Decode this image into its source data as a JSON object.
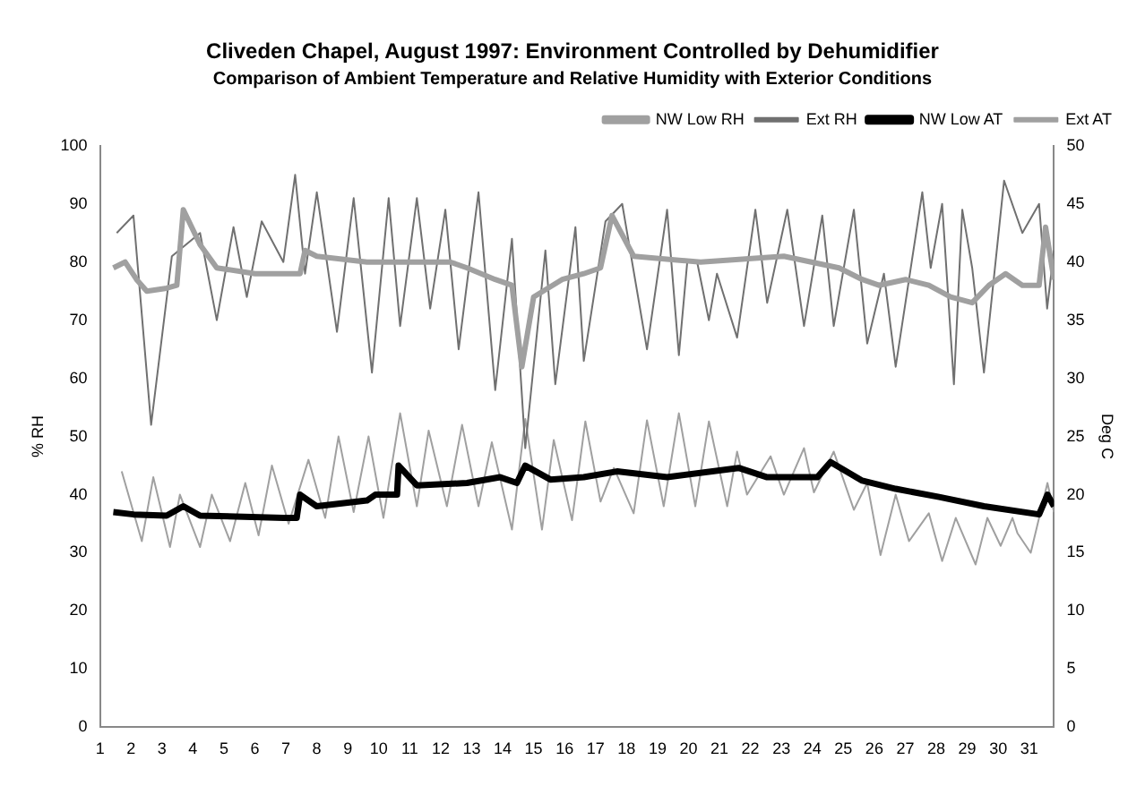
{
  "chart_data": {
    "type": "line",
    "title": "Cliveden Chapel, August 1997: Environment Controlled by Dehumidifier",
    "subtitle": "Comparison of Ambient Temperature and Relative Humidity with Exterior Conditions",
    "ylabel": "% RH",
    "y2label": "Deg C",
    "xlim": [
      1,
      31.8
    ],
    "xticks": [
      1,
      2,
      3,
      4,
      5,
      6,
      7,
      8,
      9,
      10,
      11,
      12,
      13,
      14,
      15,
      16,
      17,
      18,
      19,
      20,
      21,
      22,
      23,
      24,
      25,
      26,
      27,
      28,
      29,
      30,
      31
    ],
    "ylim": [
      0,
      100
    ],
    "yticks": [
      0,
      10,
      20,
      30,
      40,
      50,
      60,
      70,
      80,
      90,
      100
    ],
    "y2lim": [
      0,
      50
    ],
    "y2ticks": [
      0,
      5,
      10,
      15,
      20,
      25,
      30,
      35,
      40,
      45,
      50
    ],
    "grid": false,
    "legend": "top right",
    "marker": "none",
    "series": [
      {
        "name": "NW Low RH",
        "color": "#a0a0a0",
        "x": [
          1.43,
          1.81,
          2.18,
          2.51,
          3.15,
          3.48,
          3.69,
          4.23,
          4.77,
          6.01,
          7.46,
          7.62,
          8.0,
          9.62,
          12.31,
          12.85,
          13.76,
          14.3,
          14.62,
          15.0,
          15.92,
          16.62,
          17.16,
          17.53,
          18.23,
          20.39,
          23.08,
          24.86,
          25.61,
          26.15,
          27.01,
          27.76,
          28.46,
          29.16,
          29.7,
          30.24,
          30.78,
          31.32,
          31.53,
          31.8
        ],
        "values": [
          79,
          80,
          77,
          75,
          75.5,
          76,
          89,
          83,
          79,
          78,
          78,
          82,
          81,
          80,
          80,
          79,
          77,
          76,
          62,
          74,
          77,
          78,
          79,
          88,
          81,
          80,
          81,
          79,
          77,
          76,
          77,
          76,
          74,
          73,
          76,
          78,
          76,
          76,
          86,
          77
        ]
      },
      {
        "name": "Ext RH",
        "color": "#707070",
        "x": [
          1.54,
          2.08,
          2.65,
          3.32,
          4.23,
          4.77,
          5.31,
          5.74,
          6.22,
          6.92,
          7.3,
          7.62,
          8.0,
          8.65,
          9.19,
          9.78,
          10.32,
          10.69,
          11.23,
          11.66,
          12.15,
          12.58,
          13.22,
          13.76,
          14.3,
          14.73,
          15.38,
          15.7,
          16.35,
          16.62,
          17.32,
          17.86,
          18.66,
          19.31,
          19.69,
          19.96,
          20.28,
          20.66,
          20.92,
          21.57,
          22.16,
          22.54,
          23.19,
          23.73,
          24.32,
          24.69,
          25.34,
          25.77,
          26.31,
          26.69,
          27.55,
          27.82,
          28.19,
          28.57,
          28.84,
          29.16,
          29.54,
          30.19,
          30.78,
          31.32,
          31.58,
          31.8
        ],
        "values": [
          85,
          88,
          52,
          81,
          85,
          70,
          86,
          74,
          87,
          80,
          95,
          78,
          92,
          68,
          91,
          61,
          91,
          69,
          91,
          72,
          89,
          65,
          92,
          58,
          84,
          48,
          82,
          59,
          86,
          63,
          87,
          90,
          65,
          89,
          64,
          80,
          80,
          70,
          78,
          67,
          89,
          73,
          89,
          69,
          88,
          69,
          89,
          66,
          78,
          62,
          92,
          79,
          90,
          59,
          89,
          79,
          61,
          94,
          85,
          90,
          72,
          82
        ]
      },
      {
        "name": "NW Low AT",
        "color": "#000000",
        "axis": "y2",
        "x": [
          1.43,
          2.08,
          3.15,
          3.69,
          4.23,
          6.92,
          7.35,
          7.46,
          8.0,
          9.62,
          9.89,
          10.59,
          10.64,
          11.23,
          12.85,
          13.92,
          14.46,
          14.73,
          15.54,
          16.62,
          17.69,
          19.31,
          21.62,
          22.54,
          24.16,
          24.59,
          25.61,
          26.69,
          28.09,
          29.54,
          31.32,
          31.59,
          31.8
        ],
        "values": [
          18.5,
          18.3,
          18.2,
          19,
          18.2,
          18,
          18,
          20,
          19,
          19.5,
          20,
          20,
          22.5,
          20.8,
          21,
          21.5,
          21,
          22.5,
          21.3,
          21.5,
          22,
          21.5,
          22.3,
          21.5,
          21.5,
          22.8,
          21.2,
          20.5,
          19.8,
          19,
          18.3,
          20,
          19
        ]
      },
      {
        "name": "Ext AT",
        "color": "#a0a0a0",
        "axis": "y2",
        "x": [
          1.7,
          2.35,
          2.72,
          3.26,
          3.58,
          4.23,
          4.61,
          5.2,
          5.69,
          6.12,
          6.55,
          7.09,
          7.73,
          8.27,
          8.7,
          9.19,
          9.67,
          10.15,
          10.69,
          11.23,
          11.61,
          12.2,
          12.69,
          13.22,
          13.65,
          14.3,
          14.73,
          15.27,
          15.65,
          16.24,
          16.67,
          17.16,
          17.59,
          18.23,
          18.66,
          19.2,
          19.69,
          20.22,
          20.66,
          21.25,
          21.57,
          21.89,
          22.65,
          23.08,
          23.73,
          24.05,
          24.69,
          25.34,
          25.77,
          26.2,
          26.69,
          27.12,
          27.76,
          28.19,
          28.63,
          29.27,
          29.65,
          30.08,
          30.46,
          30.62,
          31.05,
          31.59,
          31.8
        ],
        "values": [
          22,
          16,
          21.5,
          15.5,
          20,
          15.5,
          20,
          16,
          21,
          16.5,
          22.5,
          17.5,
          23,
          18,
          25,
          18.5,
          25,
          18,
          27,
          19,
          25.5,
          19,
          26,
          19,
          24.5,
          17,
          26.5,
          17,
          24.7,
          17.8,
          26.3,
          19.4,
          22.3,
          18.4,
          26.4,
          19,
          27,
          19,
          26.3,
          19,
          23.7,
          20,
          23.3,
          20,
          24,
          20.2,
          23.7,
          18.7,
          21,
          14.8,
          20,
          16,
          18.4,
          14.3,
          18,
          14,
          18,
          15.6,
          18,
          16.7,
          15,
          21,
          18.5
        ]
      }
    ]
  }
}
